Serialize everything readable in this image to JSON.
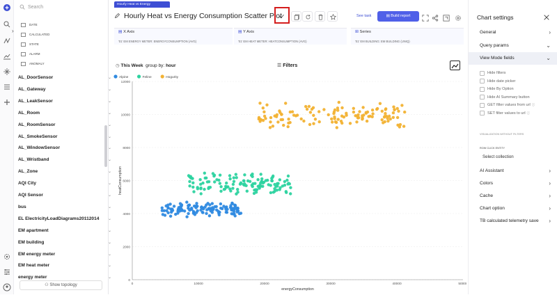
{
  "tab": {
    "label": "Hourly Heat vs Energy Consumptio..."
  },
  "page": {
    "title": "Hourly Heat vs Energy Consumption Scatter Plot"
  },
  "toolbar": {
    "see_task": "See task",
    "build_report": "Build report"
  },
  "search": {
    "placeholder": "Search"
  },
  "filters": [
    {
      "label": "DATE",
      "icon": "calendar-icon"
    },
    {
      "label": "CALCULATED",
      "icon": "grid-icon"
    },
    {
      "label": "STATE",
      "icon": "state-icon"
    },
    {
      "label": "ALARM",
      "icon": "alarm-icon"
    },
    {
      "label": "ANOMALY",
      "icon": "anomaly-icon"
    }
  ],
  "entities": [
    "AL_DoorSensor",
    "AL_Gateway",
    "AL_LeakSensor",
    "AL_Room",
    "AL_RoomSensor",
    "AL_SmokeSensor",
    "AL_WindowSensor",
    "AL_Wristband",
    "AL_Zone",
    "AQI City",
    "AQI Sensor",
    "bus",
    "EL ElectricityLoadDiagrams20112014",
    "EM apartment",
    "EM building",
    "EM energy meter",
    "EM heat meter",
    "energy meter"
  ],
  "sidebar": {
    "show_topology": "Show topology"
  },
  "axes": {
    "x": {
      "label": "X Axis",
      "value": "'01' EM ENERGY METER: ENERGYCONSUMPTION (AVG)"
    },
    "y": {
      "label": "Y Axis",
      "value": "'01' EM HEAT METER: HEATCONSUMPTION (AVG)"
    },
    "series": {
      "label": "Series",
      "value": "'01' EM BUILDING: EM BUILDING (UNIQ)"
    }
  },
  "period": {
    "label": "This Week",
    "group_prefix": "group by:",
    "group_value": "hour"
  },
  "filters_label": "Filters",
  "settings": {
    "title": "Chart settings",
    "sections": [
      "General",
      "Query params",
      "View Mode fields"
    ],
    "checkboxes": [
      "Hide filters",
      "Hide date picker",
      "Hide By Option",
      "Hide AI Summary button",
      "GET filter values from url",
      "SET filter values to url"
    ],
    "tiny_label": "VISUALIZATION WITHOUT FILTERS",
    "row_click_label": "ROW CLICK ENTITY",
    "select_collection": "Select collection",
    "lower_sections": [
      "AI Assistant",
      "Colors",
      "Cache",
      "Chart option",
      "TB calculated telemetry save"
    ]
  },
  "chart_data": {
    "type": "scatter",
    "xlabel": "energyConsumption",
    "ylabel": "heatConsumption",
    "xlim": [
      0,
      50000
    ],
    "ylim": [
      0,
      12000
    ],
    "xticks": [
      0,
      10000,
      20000,
      30000,
      40000,
      50000
    ],
    "yticks": [
      0,
      2000,
      4000,
      6000,
      8000,
      10000,
      12000
    ],
    "legend": "top-left",
    "grid": true,
    "series": [
      {
        "name": "Alpine",
        "color": "#2f8ae0",
        "x_range": [
          4500,
          16500
        ],
        "y_range": [
          3800,
          4700
        ],
        "count": 130
      },
      {
        "name": "Feline",
        "color": "#2dd3a0",
        "x_range": [
          8500,
          24000
        ],
        "y_range": [
          5100,
          6500
        ],
        "count": 130
      },
      {
        "name": "Hogurity",
        "color": "#f2b233",
        "x_range": [
          19000,
          41500
        ],
        "y_range": [
          9100,
          10800
        ],
        "count": 130
      }
    ]
  }
}
